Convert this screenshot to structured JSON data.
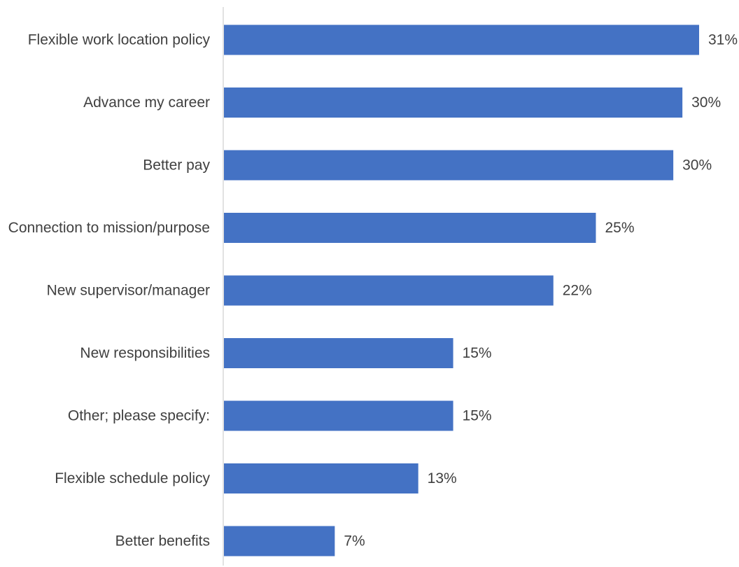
{
  "chart_data": {
    "type": "bar",
    "orientation": "horizontal",
    "categories": [
      "Flexible work location policy",
      "Advance my career",
      "Better pay",
      "Connection to mission/purpose",
      "New supervisor/manager",
      "New responsibilities",
      "Other; please specify:",
      "Flexible schedule policy",
      "Better benefits"
    ],
    "values": [
      31.3,
      30.2,
      29.6,
      24.5,
      21.7,
      15.1,
      15.1,
      12.8,
      7.3
    ],
    "data_labels": [
      "31%",
      "30%",
      "30%",
      "25%",
      "22%",
      "15%",
      "15%",
      "13%",
      "7%"
    ],
    "bar_color": "#4472c4",
    "xlim": [
      0,
      31.3
    ],
    "grid": false,
    "legend": "none"
  }
}
